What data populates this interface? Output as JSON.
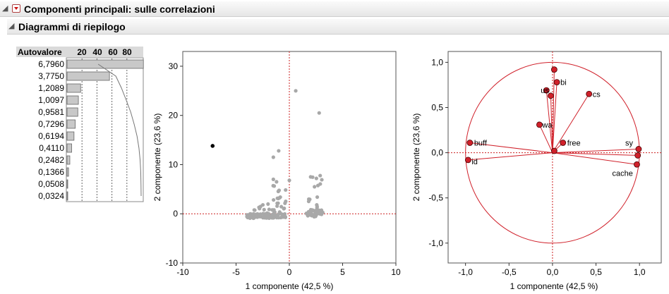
{
  "header": {
    "title": "Componenti principali: sulle correlazioni",
    "icon": "red-triangle-menu-icon"
  },
  "subheader": {
    "title": "Diagrammi di riepilogo"
  },
  "eigen": {
    "column_label": "Autovalore",
    "pct_ticks": [
      "20",
      "40",
      "60",
      "80"
    ],
    "values": [
      "6,7960",
      "3,7750",
      "1,2089",
      "1,0097",
      "0,9581",
      "0,7296",
      "0,6194",
      "0,4110",
      "0,2482",
      "0,1366",
      "0,0508",
      "0,0324"
    ],
    "numeric": [
      6.796,
      3.775,
      1.2089,
      1.0097,
      0.9581,
      0.7296,
      0.6194,
      0.411,
      0.2482,
      0.1366,
      0.0508,
      0.0324
    ]
  },
  "score_plot": {
    "xlabel": "1 componente  (42,5 %)",
    "ylabel": "2 componente  (23,6 %)",
    "xticks": [
      "-10",
      "-5",
      "0",
      "5",
      "10"
    ],
    "yticks": [
      "30",
      "20",
      "10",
      "0",
      "-10"
    ],
    "xlim": [
      -10,
      10
    ],
    "ylim": [
      -10,
      33
    ],
    "highlighted_point": [
      -7.2,
      13.8
    ],
    "point_color": "#a8a8a8",
    "highlight_color": "#000000"
  },
  "loading_plot": {
    "xlabel": "1 componente  (42,5 %)",
    "ylabel": "2 componente  (23,6 %)",
    "xticks": [
      "-1,0",
      "-0,5",
      "0,0",
      "0,5",
      "1,0"
    ],
    "yticks": [
      "1,0",
      "0,5",
      "0,0",
      "-0,5",
      "-1,0"
    ],
    "xlim": [
      -1.2,
      1.25
    ],
    "ylim": [
      -1.22,
      1.12
    ],
    "accent": "#d0202a",
    "labels": [
      "bi",
      "cs",
      "us",
      "wa",
      "free",
      "buff",
      "id",
      "sy",
      "cache"
    ],
    "vectors": [
      {
        "x": 0.02,
        "y": 0.92
      },
      {
        "x": 0.05,
        "y": 0.78,
        "label": "bi"
      },
      {
        "x": 0.42,
        "y": 0.65,
        "label": "cs"
      },
      {
        "x": -0.07,
        "y": 0.69,
        "label": "us"
      },
      {
        "x": -0.02,
        "y": 0.63
      },
      {
        "x": -0.15,
        "y": 0.31,
        "label": "wa"
      },
      {
        "x": 0.12,
        "y": 0.11,
        "label": "free"
      },
      {
        "x": 0.02,
        "y": 0.02
      },
      {
        "x": -0.95,
        "y": 0.11,
        "label": "buff"
      },
      {
        "x": -0.97,
        "y": -0.08,
        "label": "id"
      },
      {
        "x": 0.99,
        "y": 0.04,
        "label": "sy"
      },
      {
        "x": 0.98,
        "y": -0.03
      },
      {
        "x": 0.97,
        "y": -0.13,
        "label": "cache"
      }
    ]
  }
}
